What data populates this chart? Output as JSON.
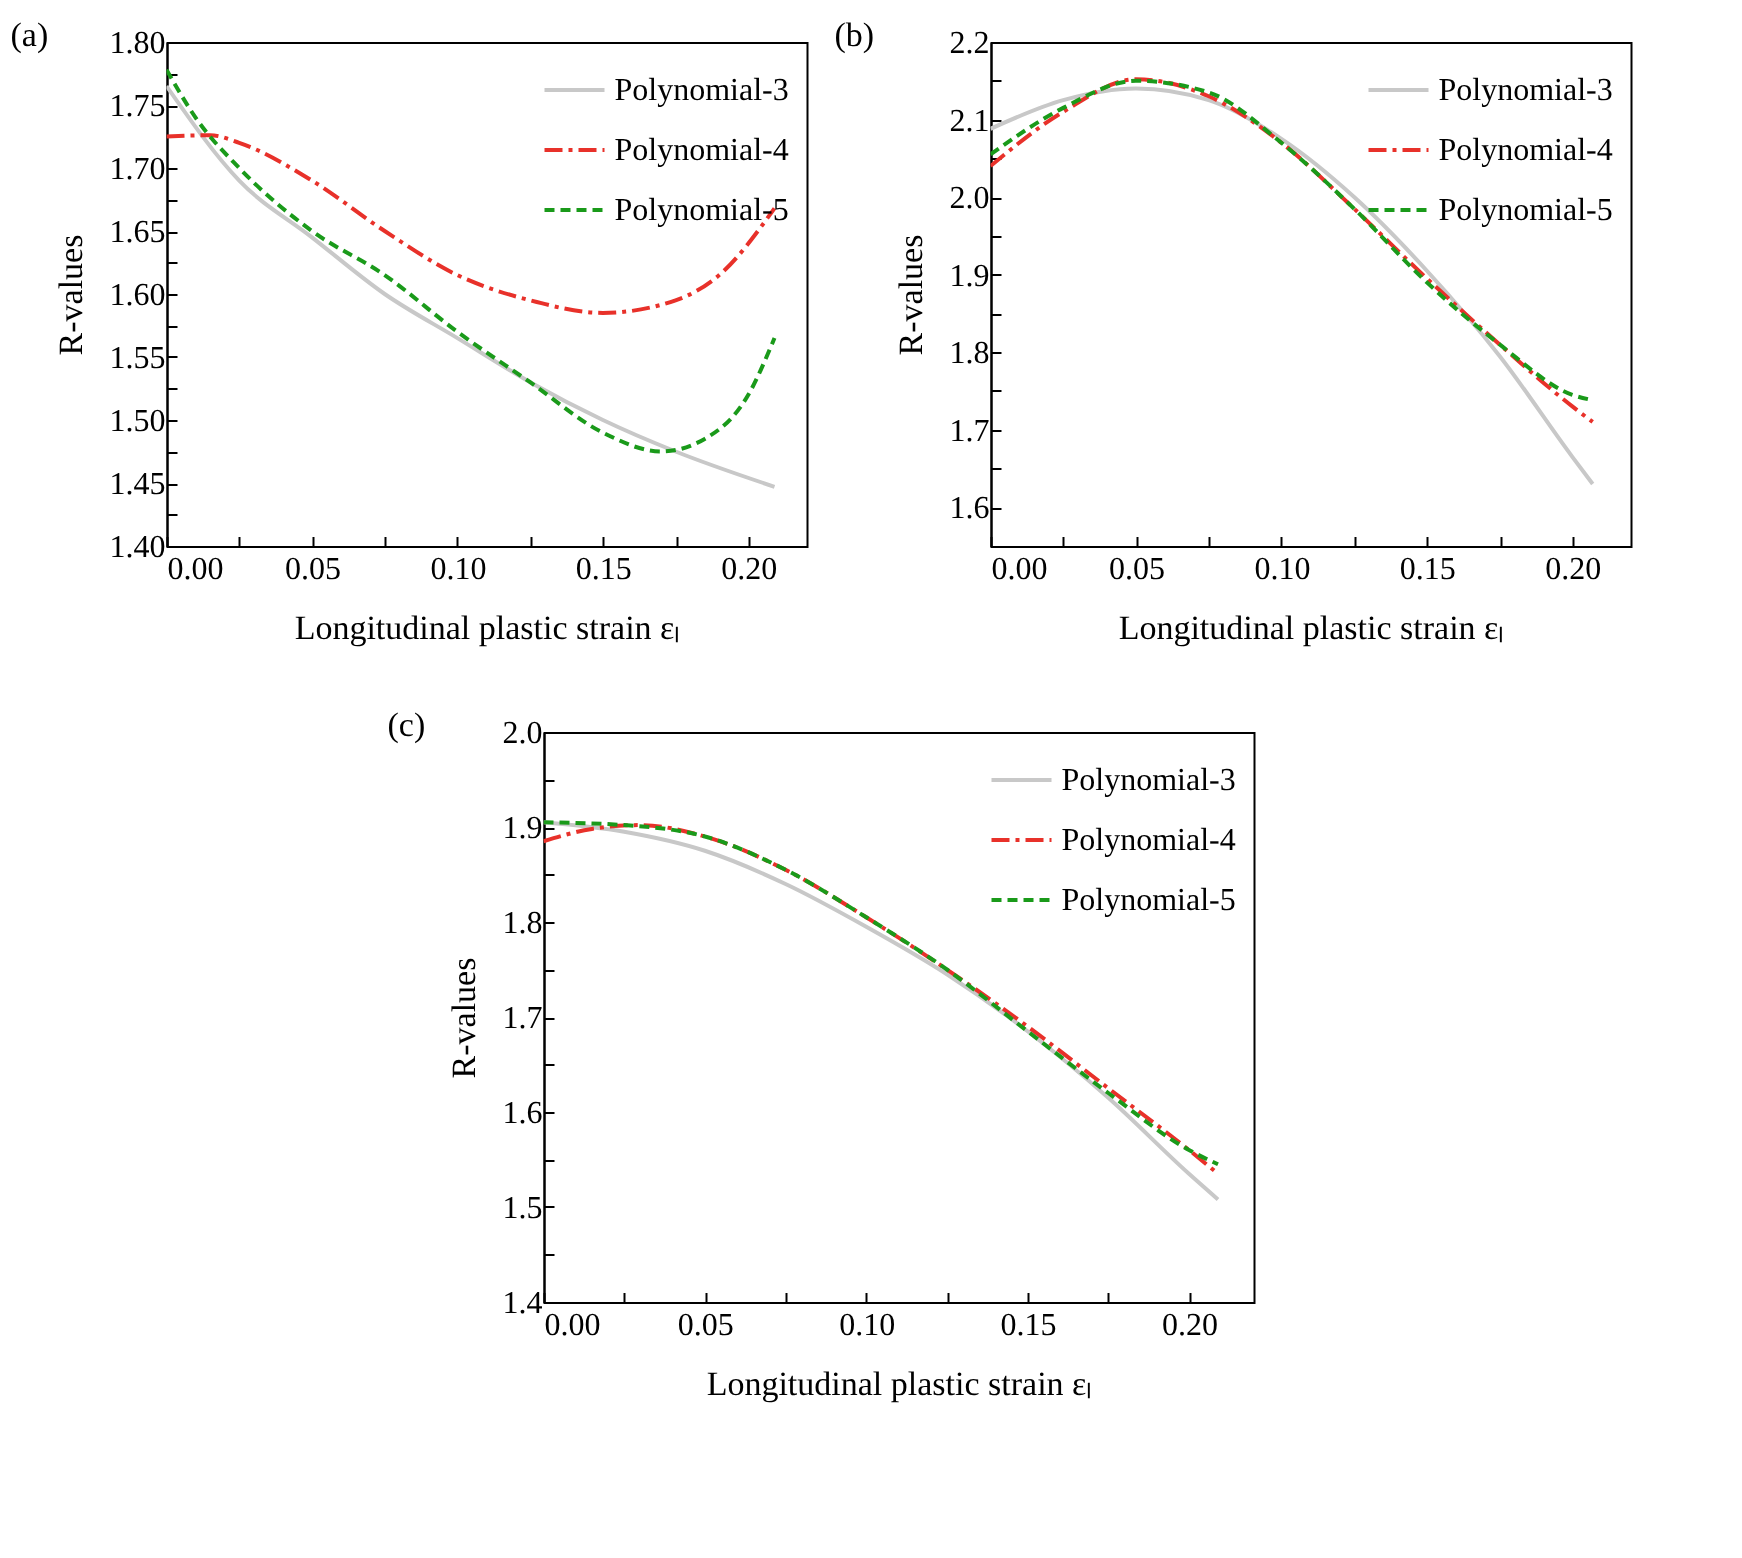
{
  "chart_data": [
    {
      "type": "line",
      "title": "(a)",
      "xlabel": "Longitudinal plastic strain εₗ",
      "ylabel": "R-values",
      "xlim": [
        0,
        0.22
      ],
      "ylim": [
        1.4,
        1.8
      ],
      "xticks": [
        {
          "value": 0,
          "label": "0.00"
        },
        {
          "value": 0.025,
          "label": null
        },
        {
          "value": 0.05,
          "label": "0.05"
        },
        {
          "value": 0.075,
          "label": null
        },
        {
          "value": 0.1,
          "label": "0.10"
        },
        {
          "value": 0.125,
          "label": null
        },
        {
          "value": 0.15,
          "label": "0.15"
        },
        {
          "value": 0.175,
          "label": null
        },
        {
          "value": 0.2,
          "label": "0.20"
        }
      ],
      "yticks": [
        {
          "value": 1.4,
          "label": "1.40"
        },
        {
          "value": 1.425,
          "label": null
        },
        {
          "value": 1.45,
          "label": "1.45"
        },
        {
          "value": 1.475,
          "label": null
        },
        {
          "value": 1.5,
          "label": "1.50"
        },
        {
          "value": 1.525,
          "label": null
        },
        {
          "value": 1.55,
          "label": "1.55"
        },
        {
          "value": 1.575,
          "label": null
        },
        {
          "value": 1.6,
          "label": "1.60"
        },
        {
          "value": 1.625,
          "label": null
        },
        {
          "value": 1.65,
          "label": "1.65"
        },
        {
          "value": 1.675,
          "label": null
        },
        {
          "value": 1.7,
          "label": "1.70"
        },
        {
          "value": 1.725,
          "label": null
        },
        {
          "value": 1.75,
          "label": "1.75"
        },
        {
          "value": 1.775,
          "label": null
        },
        {
          "value": 1.8,
          "label": "1.80"
        }
      ],
      "legend": "top right",
      "grid": false,
      "marker": "none",
      "series": [
        {
          "name": "Polynomial-3",
          "color": "#c8c8c8",
          "line_style": "solid",
          "x": [
            0,
            0.025,
            0.05,
            0.075,
            0.1,
            0.125,
            0.15,
            0.175,
            0.209
          ],
          "values": [
            1.765,
            1.69,
            1.645,
            1.6,
            1.565,
            1.53,
            1.5,
            1.475,
            1.447
          ]
        },
        {
          "name": "Polynomial-4",
          "color": "#e8312a",
          "line_style": "dashdot",
          "x": [
            0,
            0.015,
            0.025,
            0.05,
            0.075,
            0.1,
            0.125,
            0.15,
            0.175,
            0.19,
            0.209
          ],
          "values": [
            1.725,
            1.726,
            1.72,
            1.69,
            1.65,
            1.615,
            1.595,
            1.585,
            1.595,
            1.615,
            1.668
          ]
        },
        {
          "name": "Polynomial-5",
          "color": "#1a9a1a",
          "line_style": "dashed",
          "x": [
            0,
            0.01,
            0.025,
            0.05,
            0.075,
            0.1,
            0.125,
            0.15,
            0.17,
            0.185,
            0.2,
            0.209
          ],
          "values": [
            1.778,
            1.74,
            1.7,
            1.65,
            1.615,
            1.57,
            1.53,
            1.49,
            1.475,
            1.485,
            1.52,
            1.565
          ]
        }
      ]
    },
    {
      "type": "line",
      "title": "(b)",
      "xlabel": "Longitudinal plastic strain εₗ",
      "ylabel": "R-values",
      "xlim": [
        0,
        0.22
      ],
      "ylim": [
        1.55,
        2.2
      ],
      "xticks": [
        {
          "value": 0,
          "label": "0.00"
        },
        {
          "value": 0.025,
          "label": null
        },
        {
          "value": 0.05,
          "label": "0.05"
        },
        {
          "value": 0.075,
          "label": null
        },
        {
          "value": 0.1,
          "label": "0.10"
        },
        {
          "value": 0.125,
          "label": null
        },
        {
          "value": 0.15,
          "label": "0.15"
        },
        {
          "value": 0.175,
          "label": null
        },
        {
          "value": 0.2,
          "label": "0.20"
        }
      ],
      "yticks": [
        {
          "value": 1.6,
          "label": "1.6"
        },
        {
          "value": 1.65,
          "label": null
        },
        {
          "value": 1.7,
          "label": "1.7"
        },
        {
          "value": 1.75,
          "label": null
        },
        {
          "value": 1.8,
          "label": "1.8"
        },
        {
          "value": 1.85,
          "label": null
        },
        {
          "value": 1.9,
          "label": "1.9"
        },
        {
          "value": 1.95,
          "label": null
        },
        {
          "value": 2.0,
          "label": "2.0"
        },
        {
          "value": 2.05,
          "label": null
        },
        {
          "value": 2.1,
          "label": "2.1"
        },
        {
          "value": 2.15,
          "label": null
        },
        {
          "value": 2.2,
          "label": "2.2"
        }
      ],
      "legend": "top right",
      "grid": false,
      "marker": "none",
      "series": [
        {
          "name": "Polynomial-3",
          "color": "#c8c8c8",
          "line_style": "solid",
          "x": [
            0,
            0.025,
            0.05,
            0.075,
            0.1,
            0.125,
            0.15,
            0.175,
            0.2,
            0.207
          ],
          "values": [
            2.088,
            2.125,
            2.14,
            2.125,
            2.075,
            2.0,
            1.905,
            1.795,
            1.665,
            1.63
          ]
        },
        {
          "name": "Polynomial-4",
          "color": "#e8312a",
          "line_style": "dashdot",
          "x": [
            0,
            0.025,
            0.05,
            0.075,
            0.1,
            0.125,
            0.15,
            0.175,
            0.2,
            0.207
          ],
          "values": [
            2.04,
            2.11,
            2.152,
            2.13,
            2.07,
            1.985,
            1.895,
            1.81,
            1.73,
            1.71
          ]
        },
        {
          "name": "Polynomial-5",
          "color": "#1a9a1a",
          "line_style": "dashed",
          "x": [
            0,
            0.025,
            0.05,
            0.075,
            0.1,
            0.125,
            0.15,
            0.175,
            0.2,
            0.207
          ],
          "values": [
            2.055,
            2.115,
            2.15,
            2.135,
            2.07,
            1.985,
            1.89,
            1.81,
            1.745,
            1.738
          ]
        }
      ]
    },
    {
      "type": "line",
      "title": "(c)",
      "xlabel": "Longitudinal plastic strain εₗ",
      "ylabel": "R-values",
      "xlim": [
        0,
        0.22
      ],
      "ylim": [
        1.4,
        2.0
      ],
      "xticks": [
        {
          "value": 0,
          "label": "0.00"
        },
        {
          "value": 0.025,
          "label": null
        },
        {
          "value": 0.05,
          "label": "0.05"
        },
        {
          "value": 0.075,
          "label": null
        },
        {
          "value": 0.1,
          "label": "0.10"
        },
        {
          "value": 0.125,
          "label": null
        },
        {
          "value": 0.15,
          "label": "0.15"
        },
        {
          "value": 0.175,
          "label": null
        },
        {
          "value": 0.2,
          "label": "0.20"
        }
      ],
      "yticks": [
        {
          "value": 1.4,
          "label": "1.4"
        },
        {
          "value": 1.45,
          "label": null
        },
        {
          "value": 1.5,
          "label": "1.5"
        },
        {
          "value": 1.55,
          "label": null
        },
        {
          "value": 1.6,
          "label": "1.6"
        },
        {
          "value": 1.65,
          "label": null
        },
        {
          "value": 1.7,
          "label": "1.7"
        },
        {
          "value": 1.75,
          "label": null
        },
        {
          "value": 1.8,
          "label": "1.8"
        },
        {
          "value": 1.85,
          "label": null
        },
        {
          "value": 1.9,
          "label": "1.9"
        },
        {
          "value": 1.95,
          "label": null
        },
        {
          "value": 2.0,
          "label": "2.0"
        }
      ],
      "legend": "top right",
      "grid": false,
      "marker": "none",
      "series": [
        {
          "name": "Polynomial-3",
          "color": "#c8c8c8",
          "line_style": "solid",
          "x": [
            0,
            0.025,
            0.05,
            0.075,
            0.1,
            0.125,
            0.15,
            0.175,
            0.2,
            0.209
          ],
          "values": [
            1.905,
            1.895,
            1.875,
            1.84,
            1.795,
            1.745,
            1.685,
            1.615,
            1.535,
            1.508
          ]
        },
        {
          "name": "Polynomial-4",
          "color": "#e8312a",
          "line_style": "dashdot",
          "x": [
            0,
            0.015,
            0.03,
            0.05,
            0.075,
            0.1,
            0.125,
            0.15,
            0.175,
            0.2,
            0.209
          ],
          "values": [
            1.885,
            1.898,
            1.902,
            1.89,
            1.855,
            1.805,
            1.75,
            1.69,
            1.625,
            1.56,
            1.535
          ]
        },
        {
          "name": "Polynomial-5",
          "color": "#1a9a1a",
          "line_style": "dashed",
          "x": [
            0,
            0.025,
            0.05,
            0.075,
            0.1,
            0.125,
            0.15,
            0.175,
            0.2,
            0.209
          ],
          "values": [
            1.905,
            1.902,
            1.89,
            1.855,
            1.805,
            1.75,
            1.685,
            1.62,
            1.56,
            1.545
          ]
        }
      ]
    }
  ]
}
